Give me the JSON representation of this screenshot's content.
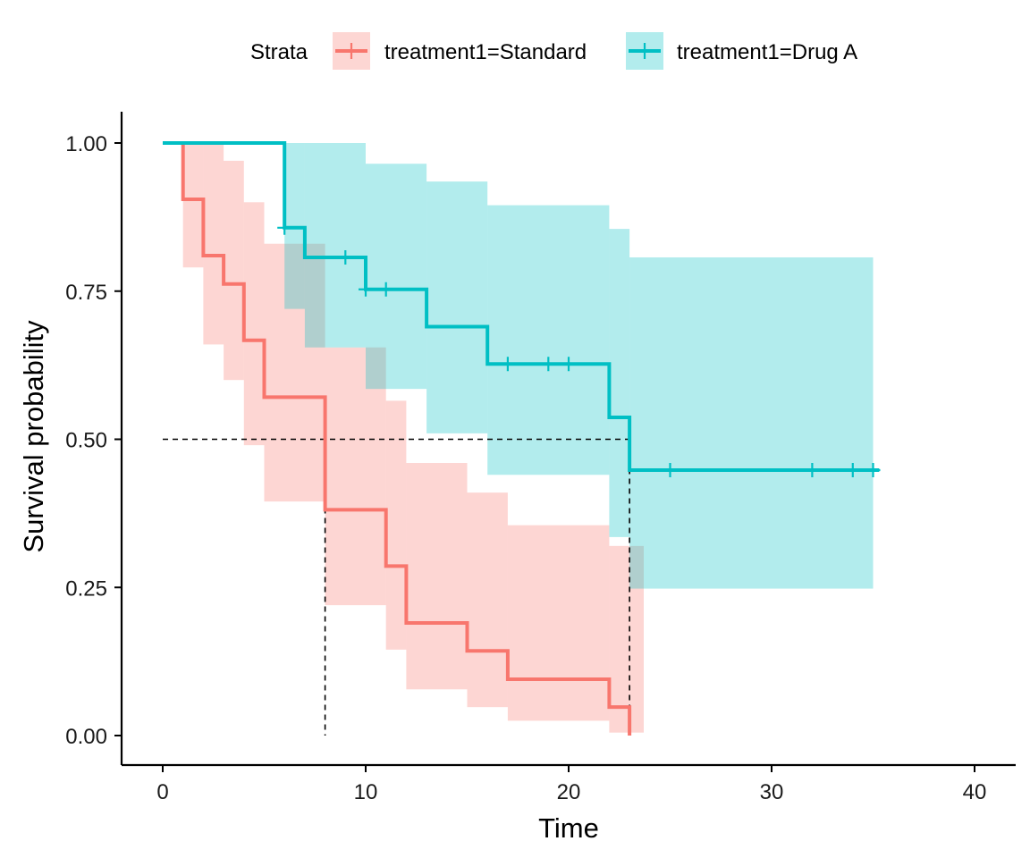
{
  "chart_data": {
    "type": "line",
    "subtype": "kaplan-meier survival curve with confidence bands",
    "title": "",
    "xlabel": "Time",
    "ylabel": "Survival probability",
    "xlim": [
      0,
      40
    ],
    "ylim": [
      0,
      1
    ],
    "x_ticks": [
      0,
      10,
      20,
      30,
      40
    ],
    "y_ticks": [
      0,
      0.25,
      0.5,
      0.75,
      1
    ],
    "x_tick_labels": [
      "0",
      "10",
      "20",
      "30",
      "40"
    ],
    "y_tick_labels": [
      "0.00",
      "0.25",
      "0.50",
      "0.75",
      "1.00"
    ],
    "grid": false,
    "legend": {
      "position": "top",
      "title": "Strata"
    },
    "median_line": {
      "y": 0.5,
      "x_values": [
        8,
        23
      ]
    },
    "series": [
      {
        "name": "treatment1=Standard",
        "color": "#F8766D",
        "band_color": "#F8766D",
        "steps": [
          [
            0,
            1.0
          ],
          [
            1,
            0.905
          ],
          [
            2,
            0.81
          ],
          [
            3,
            0.762
          ],
          [
            4,
            0.667
          ],
          [
            5,
            0.571
          ],
          [
            8,
            0.381
          ],
          [
            11,
            0.286
          ],
          [
            12,
            0.19
          ],
          [
            15,
            0.143
          ],
          [
            17,
            0.095
          ],
          [
            22,
            0.048
          ],
          [
            23,
            0.0
          ]
        ],
        "band": [
          [
            0,
            1.0,
            1.0
          ],
          [
            1,
            0.79,
            1.0
          ],
          [
            2,
            0.66,
            1.0
          ],
          [
            3,
            0.6,
            0.97
          ],
          [
            4,
            0.49,
            0.9
          ],
          [
            5,
            0.395,
            0.83
          ],
          [
            8,
            0.22,
            0.655
          ],
          [
            11,
            0.145,
            0.565
          ],
          [
            12,
            0.078,
            0.46
          ],
          [
            15,
            0.048,
            0.41
          ],
          [
            17,
            0.025,
            0.355
          ],
          [
            22,
            0.005,
            0.32
          ],
          [
            23,
            0.005,
            0.32
          ]
        ],
        "band_end": 23.7,
        "end_x": 23,
        "censor_marks": []
      },
      {
        "name": "treatment1=Drug A",
        "color": "#00BFC4",
        "band_color": "#00BFC4",
        "steps": [
          [
            0,
            1.0
          ],
          [
            6,
            0.857
          ],
          [
            7,
            0.807
          ],
          [
            10,
            0.753
          ],
          [
            13,
            0.69
          ],
          [
            16,
            0.627
          ],
          [
            22,
            0.537
          ],
          [
            23,
            0.448
          ]
        ],
        "band": [
          [
            0,
            1.0,
            1.0
          ],
          [
            6,
            0.72,
            1.0
          ],
          [
            7,
            0.655,
            1.0
          ],
          [
            10,
            0.585,
            0.965
          ],
          [
            13,
            0.51,
            0.935
          ],
          [
            16,
            0.44,
            0.895
          ],
          [
            22,
            0.335,
            0.855
          ],
          [
            23,
            0.248,
            0.807
          ]
        ],
        "band_end": 35,
        "end_x": 35.3,
        "censor_marks": [
          [
            6,
            0.857
          ],
          [
            9,
            0.807
          ],
          [
            10,
            0.753
          ],
          [
            11,
            0.753
          ],
          [
            17,
            0.627
          ],
          [
            19,
            0.627
          ],
          [
            20,
            0.627
          ],
          [
            25,
            0.448
          ],
          [
            32,
            0.448
          ],
          [
            34,
            0.448
          ],
          [
            35,
            0.448
          ]
        ]
      }
    ]
  }
}
